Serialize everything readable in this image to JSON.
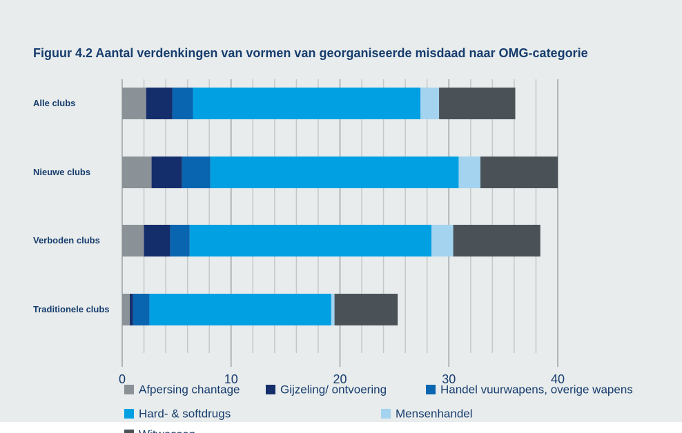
{
  "chart_data": {
    "type": "stacked-barh",
    "title": "Figuur 4.2 Aantal verdenkingen van vormen van georganiseerde misdaad naar OMG-categorie",
    "categories": [
      "Alle clubs",
      "Nieuwe clubs",
      "Verboden clubs",
      "Traditionele clubs"
    ],
    "series": [
      {
        "name": "Afpersing chantage",
        "color": "#8a9197",
        "values": [
          2.2,
          2.7,
          2.0,
          0.7
        ]
      },
      {
        "name": "Gijzeling/ ontvoering",
        "color": "#142d6b",
        "values": [
          2.4,
          2.8,
          2.4,
          0.3
        ]
      },
      {
        "name": "Handel vuurwapens, overige wapens",
        "color": "#0a65b0",
        "values": [
          1.9,
          2.6,
          1.8,
          1.5
        ]
      },
      {
        "name": "Hard- & softdrugs",
        "color": "#00a0e3",
        "values": [
          20.9,
          22.8,
          22.2,
          16.7
        ]
      },
      {
        "name": "Mensenhandel",
        "color": "#a3d3ee",
        "values": [
          1.7,
          2.0,
          2.0,
          0.3
        ]
      },
      {
        "name": "Witwassen",
        "color": "#4a5258",
        "values": [
          7.0,
          7.1,
          8.0,
          5.8
        ]
      }
    ],
    "xlim": [
      0,
      40
    ],
    "xticks": [
      0,
      10,
      20,
      30,
      40
    ],
    "xminorticks": [
      2,
      4,
      6,
      8,
      12,
      14,
      16,
      18,
      22,
      24,
      26,
      28,
      32,
      34,
      36,
      38
    ],
    "grid": true,
    "legend": "bottom"
  }
}
